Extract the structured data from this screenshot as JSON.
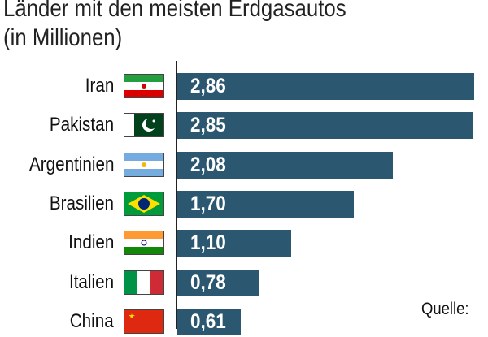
{
  "chart_data": {
    "type": "bar",
    "orientation": "horizontal",
    "title": "Länder mit den meisten Erdgasautos",
    "subtitle": "(in Millionen)",
    "categories": [
      "Iran",
      "Pakistan",
      "Argentinien",
      "Brasilien",
      "Indien",
      "Italien",
      "China"
    ],
    "values": [
      2.86,
      2.85,
      2.08,
      1.7,
      1.1,
      0.78,
      0.61
    ],
    "value_labels": [
      "2,86",
      "2,85",
      "2,08",
      "1,70",
      "1,10",
      "0,78",
      "0,61"
    ],
    "flag_icons": [
      "flag-iran-icon",
      "flag-pakistan-icon",
      "flag-argentina-icon",
      "flag-brazil-icon",
      "flag-india-icon",
      "flag-italy-icon",
      "flag-china-icon"
    ],
    "xlim": [
      0,
      2.86
    ],
    "bar_color": "#2b5870",
    "source_label": "Quelle:"
  }
}
